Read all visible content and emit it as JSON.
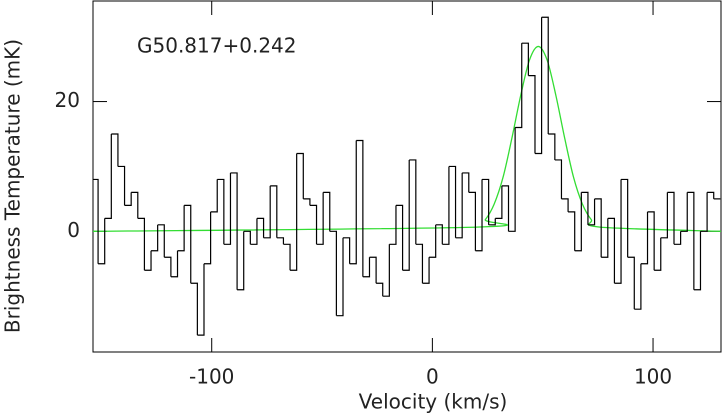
{
  "chart_data": {
    "type": "step",
    "annotation": "G50.817+0.242",
    "x_label": "Velocity (km/s)",
    "y_label": "Brightness Temperature (mK)",
    "xlim": [
      -153.8,
      130.8
    ],
    "ylim": [
      -18.6,
      35.5
    ],
    "xticks": [
      -100,
      0,
      100
    ],
    "yticks": [
      0,
      20
    ],
    "series": [
      {
        "color": "#000000",
        "x": [
          -153,
          -150,
          -147,
          -144,
          -141,
          -138,
          -135,
          -132,
          -129,
          -126,
          -123,
          -120,
          -117,
          -114,
          -111,
          -108,
          -105,
          -102,
          -99,
          -96,
          -93,
          -90,
          -87,
          -84,
          -81,
          -78,
          -75,
          -72,
          -69,
          -66,
          -63,
          -60,
          -57,
          -54,
          -51,
          -48,
          -45,
          -42,
          -39,
          -36,
          -33,
          -30,
          -27,
          -24,
          -21,
          -18,
          -15,
          -12,
          -9,
          -6,
          -3,
          0,
          3,
          6,
          9,
          12,
          15,
          18,
          21,
          24,
          27,
          30,
          33,
          36,
          39,
          42,
          45,
          48,
          51,
          54,
          57,
          60,
          63,
          66,
          69,
          72,
          75,
          78,
          81,
          84,
          87,
          90,
          93,
          96,
          99,
          102,
          105,
          108,
          111,
          114,
          117,
          120,
          123,
          126,
          129
        ],
        "values": [
          8,
          -5,
          2,
          15,
          10,
          4,
          6,
          2,
          -6,
          -3,
          1,
          -4,
          -7,
          -3,
          4,
          -8,
          -16,
          -5,
          3,
          8,
          -2,
          9,
          -9,
          0,
          -2,
          2,
          -1,
          7,
          -1,
          -2,
          -6,
          12,
          5,
          4,
          -2,
          6,
          0,
          -13,
          -1,
          -5,
          14,
          -7,
          -4,
          -8,
          -10,
          -2,
          4,
          -6,
          11,
          -2,
          -8,
          -4,
          1,
          -2,
          10,
          -1,
          9,
          6,
          -3,
          8,
          1,
          2,
          7,
          0,
          16,
          29,
          24,
          12,
          33,
          15,
          11,
          5,
          3,
          -3,
          6,
          1,
          5,
          -4,
          2,
          -8,
          8,
          -4,
          -12,
          -5,
          3,
          -6,
          -1,
          6,
          -2,
          0,
          6,
          -9,
          0,
          6,
          5
        ]
      },
      {
        "color": "#33dd33",
        "x": [
          -153.8,
          20,
          24,
          28,
          32,
          36,
          40,
          44,
          48,
          52,
          56,
          60,
          64,
          68,
          72,
          76,
          130.8
        ],
        "values": [
          0,
          0.65,
          1.8,
          4.2,
          8.3,
          14.3,
          20.9,
          26.4,
          28.5,
          26.4,
          20.9,
          14.3,
          8.3,
          4.2,
          1.8,
          0.65,
          0
        ]
      }
    ]
  }
}
